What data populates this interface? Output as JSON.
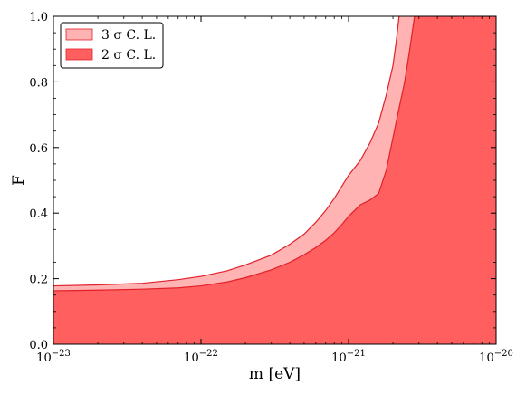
{
  "chart_data": {
    "type": "area",
    "xscale": "log",
    "xlim": [
      1e-23,
      1e-20
    ],
    "ylim": [
      0.0,
      1.0
    ],
    "xlabel": "m [eV]",
    "ylabel": "F",
    "x_ticks": [
      {
        "value": 1e-23,
        "label_base": "10",
        "label_exp": "−23"
      },
      {
        "value": 1e-22,
        "label_base": "10",
        "label_exp": "−22"
      },
      {
        "value": 1e-21,
        "label_base": "10",
        "label_exp": "−21"
      },
      {
        "value": 1e-20,
        "label_base": "10",
        "label_exp": "−20"
      }
    ],
    "y_ticks": [
      {
        "value": 0.0,
        "label": "0.0"
      },
      {
        "value": 0.2,
        "label": "0.2"
      },
      {
        "value": 0.4,
        "label": "0.4"
      },
      {
        "value": 0.6,
        "label": "0.6"
      },
      {
        "value": 0.8,
        "label": "0.8"
      },
      {
        "value": 1.0,
        "label": "1.0"
      }
    ],
    "grid": false,
    "legend_position": "top-left",
    "series": [
      {
        "name": "3 σ  C. L.",
        "color": "#ffb3b3",
        "edge": "#e0202a",
        "x": [
          1e-23,
          2e-23,
          4e-23,
          7e-23,
          1e-22,
          1.5e-22,
          2e-22,
          3e-22,
          4e-22,
          5e-22,
          6e-22,
          7e-22,
          8e-22,
          9e-22,
          1e-21,
          1.2e-21,
          1.4e-21,
          1.6e-21,
          1.8e-21,
          2e-21,
          2.1e-21,
          2.2e-21
        ],
        "y": [
          0.178,
          0.181,
          0.186,
          0.197,
          0.207,
          0.224,
          0.242,
          0.272,
          0.305,
          0.336,
          0.372,
          0.408,
          0.445,
          0.482,
          0.515,
          0.56,
          0.615,
          0.675,
          0.76,
          0.85,
          0.92,
          1.0
        ]
      },
      {
        "name": "2 σ  C. L.",
        "color": "#ff5f5f",
        "edge": "#e0202a",
        "x": [
          1e-23,
          2e-23,
          4e-23,
          7e-23,
          1e-22,
          1.5e-22,
          2e-22,
          3e-22,
          4e-22,
          5e-22,
          6e-22,
          7e-22,
          8e-22,
          9e-22,
          1e-21,
          1.2e-21,
          1.4e-21,
          1.6e-21,
          1.8e-21,
          2e-21,
          2.2e-21,
          2.4e-21,
          2.6e-21,
          2.8e-21
        ],
        "y": [
          0.163,
          0.165,
          0.168,
          0.172,
          0.178,
          0.19,
          0.203,
          0.227,
          0.25,
          0.273,
          0.295,
          0.317,
          0.34,
          0.365,
          0.39,
          0.425,
          0.44,
          0.46,
          0.53,
          0.63,
          0.72,
          0.8,
          0.9,
          1.0
        ]
      }
    ]
  }
}
